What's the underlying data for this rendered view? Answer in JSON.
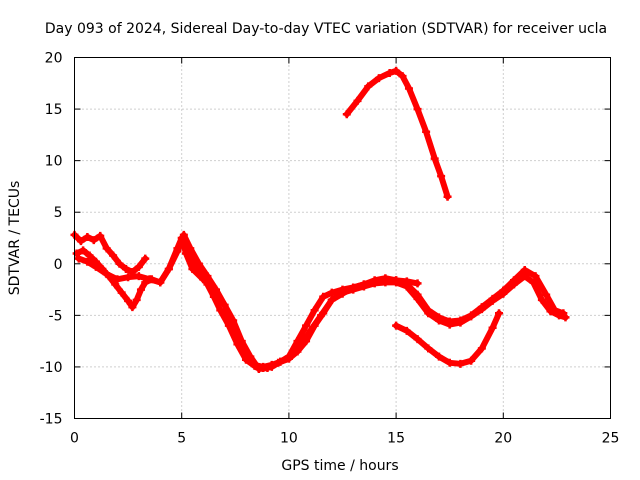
{
  "chart_data": {
    "type": "line",
    "title": "Day 093 of 2024, Sidereal Day-to-day VTEC variation (SDTVAR) for receiver ucla",
    "xlabel": "GPS time / hours",
    "ylabel": "SDTVAR / TECUs",
    "xlim": [
      0,
      25
    ],
    "ylim": [
      -15,
      20
    ],
    "xticks": [
      0,
      5,
      10,
      15,
      20,
      25
    ],
    "yticks": [
      -15,
      -10,
      -5,
      0,
      5,
      10,
      15,
      20
    ],
    "xtick_labels": [
      "0",
      "5",
      "10",
      "15",
      "20",
      "25"
    ],
    "ytick_labels": [
      "-15",
      "-10",
      "-5",
      "0",
      "5",
      "10",
      "15",
      "20"
    ],
    "grid": true,
    "legend": "none",
    "color": "#ff0000",
    "series": [
      {
        "name": "track-a",
        "x": [
          0.0,
          0.3,
          0.6,
          0.9,
          1.2,
          1.5,
          1.8,
          2.1,
          2.4,
          2.7,
          3.0,
          3.3
        ],
        "y": [
          2.8,
          2.2,
          2.6,
          2.3,
          2.7,
          1.5,
          0.8,
          0.0,
          -0.5,
          -0.8,
          -0.3,
          0.5
        ]
      },
      {
        "name": "track-b",
        "x": [
          0.1,
          0.4,
          0.7,
          1.0,
          1.3,
          1.6,
          1.9,
          2.2,
          2.5,
          2.7,
          2.9,
          3.1,
          3.3,
          3.6,
          4.0,
          4.4,
          4.8,
          5.0,
          5.2,
          5.5,
          6.0,
          6.5,
          7.0,
          7.3,
          7.6,
          8.0,
          8.4,
          8.8,
          9.2,
          9.6,
          10.0,
          10.4,
          10.8,
          11.2,
          11.6,
          12.0,
          12.5,
          13.0,
          13.5,
          14.0,
          14.5,
          15.0,
          15.5,
          16.0,
          16.5,
          17.0,
          17.5,
          18.0,
          18.5,
          19.0,
          19.5,
          20.0,
          20.5,
          21.0,
          21.5,
          22.0,
          22.4,
          22.8
        ],
        "y": [
          1.0,
          1.3,
          0.8,
          0.2,
          -0.5,
          -1.2,
          -2.0,
          -2.8,
          -3.6,
          -4.2,
          -3.5,
          -2.5,
          -1.8,
          -1.5,
          -1.8,
          -0.5,
          1.5,
          2.5,
          1.0,
          -0.5,
          -1.5,
          -2.5,
          -4.0,
          -5.8,
          -7.0,
          -8.5,
          -9.8,
          -10.0,
          -9.8,
          -9.5,
          -9.0,
          -7.5,
          -6.0,
          -4.5,
          -3.2,
          -2.8,
          -2.5,
          -2.3,
          -2.0,
          -1.7,
          -1.5,
          -1.6,
          -2.0,
          -3.0,
          -4.5,
          -5.2,
          -5.6,
          -5.5,
          -5.0,
          -4.2,
          -3.4,
          -2.6,
          -1.6,
          -0.6,
          -1.2,
          -3.0,
          -4.5,
          -4.8
        ]
      },
      {
        "name": "track-c",
        "x": [
          0.2,
          0.6,
          1.0,
          1.5,
          2.0,
          2.5,
          3.0,
          3.5,
          4.0,
          4.4,
          4.8,
          5.1,
          5.4,
          5.8,
          6.2,
          6.6,
          7.0,
          7.4,
          7.8,
          8.2,
          8.6,
          9.0,
          9.5,
          10.0,
          10.5,
          11.0,
          11.5,
          12.0,
          12.5,
          13.0,
          13.5,
          14.0,
          14.5,
          15.0,
          15.5,
          16.0,
          16.5,
          17.0,
          17.5,
          18.0,
          18.5,
          19.0,
          19.5,
          20.0,
          20.5,
          21.0,
          21.4,
          21.8,
          22.2,
          22.6,
          22.9
        ],
        "y": [
          0.5,
          0.2,
          -0.3,
          -1.0,
          -1.5,
          -1.3,
          -1.2,
          -1.5,
          -1.8,
          -0.5,
          1.2,
          2.8,
          1.5,
          0.0,
          -1.2,
          -2.5,
          -4.0,
          -5.5,
          -7.5,
          -9.0,
          -10.2,
          -10.1,
          -9.6,
          -9.2,
          -8.0,
          -6.5,
          -5.0,
          -3.5,
          -2.8,
          -2.5,
          -2.2,
          -1.9,
          -1.8,
          -1.8,
          -2.2,
          -3.4,
          -4.8,
          -5.5,
          -5.9,
          -5.7,
          -5.1,
          -4.4,
          -3.6,
          -2.9,
          -2.0,
          -1.2,
          -1.8,
          -3.5,
          -4.6,
          -5.0,
          -5.2
        ]
      },
      {
        "name": "track-d",
        "x": [
          5.3,
          5.6,
          5.9,
          6.2,
          6.5,
          6.8,
          7.2,
          7.6,
          8.0,
          8.4,
          8.8,
          9.2,
          9.6,
          10.0,
          10.4,
          10.8,
          11.2,
          11.6,
          12.0,
          12.5,
          13.0,
          13.5,
          14.0,
          14.5,
          15.0,
          15.5,
          16.0
        ],
        "y": [
          1.0,
          0.0,
          -1.0,
          -2.0,
          -3.2,
          -4.5,
          -6.0,
          -7.8,
          -9.3,
          -9.9,
          -10.1,
          -10.0,
          -9.5,
          -9.2,
          -8.5,
          -7.5,
          -6.0,
          -4.8,
          -3.5,
          -2.9,
          -2.3,
          -2.0,
          -1.6,
          -1.4,
          -1.6,
          -1.7,
          -1.9
        ]
      },
      {
        "name": "track-e",
        "x": [
          12.7,
          13.2,
          13.7,
          14.2,
          14.7,
          15.0,
          15.3,
          15.6,
          16.0,
          16.4,
          16.8,
          17.1,
          17.4
        ],
        "y": [
          14.5,
          15.8,
          17.2,
          18.0,
          18.5,
          18.7,
          18.2,
          17.0,
          15.0,
          12.8,
          10.2,
          8.5,
          6.5
        ]
      },
      {
        "name": "track-f",
        "x": [
          15.0,
          15.5,
          16.0,
          16.5,
          17.0,
          17.5,
          18.0,
          18.5,
          19.0,
          19.5,
          19.8
        ],
        "y": [
          -6.0,
          -6.5,
          -7.3,
          -8.2,
          -9.0,
          -9.6,
          -9.7,
          -9.4,
          -8.2,
          -6.2,
          -4.8
        ]
      }
    ]
  }
}
